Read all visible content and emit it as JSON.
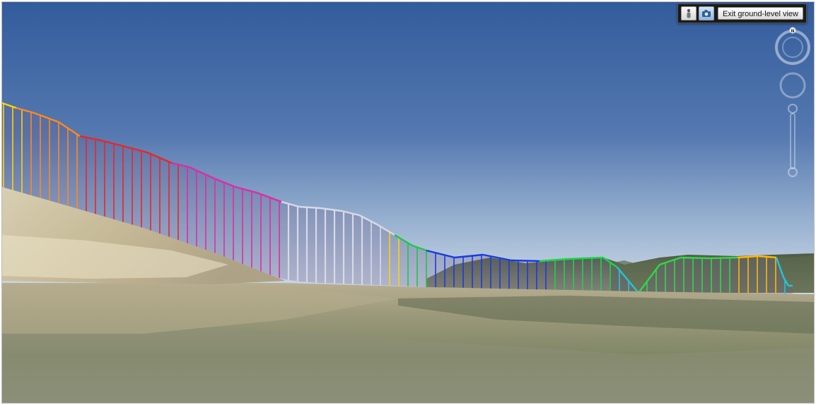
{
  "toolbar": {
    "icons": [
      {
        "name": "pegman-icon",
        "active": false
      },
      {
        "name": "camera-icon",
        "active": true
      }
    ],
    "exit_label": "Exit ground-level view"
  },
  "compass": {
    "north_label": "N"
  },
  "colors": {
    "sky_top": "#355fa0",
    "sky_bottom": "#c9d7e6",
    "terrain_near": "#77806a",
    "terrain_far": "#b5ab8d",
    "curtain_palette": [
      "#ffd400",
      "#ff8a1a",
      "#e8262b",
      "#dd2ca8",
      "#d9d9e6",
      "#ffd400",
      "#18c94a",
      "#1a3bdc",
      "#19d64a",
      "#21c6d8",
      "#2fd84a",
      "#ffb800"
    ]
  }
}
